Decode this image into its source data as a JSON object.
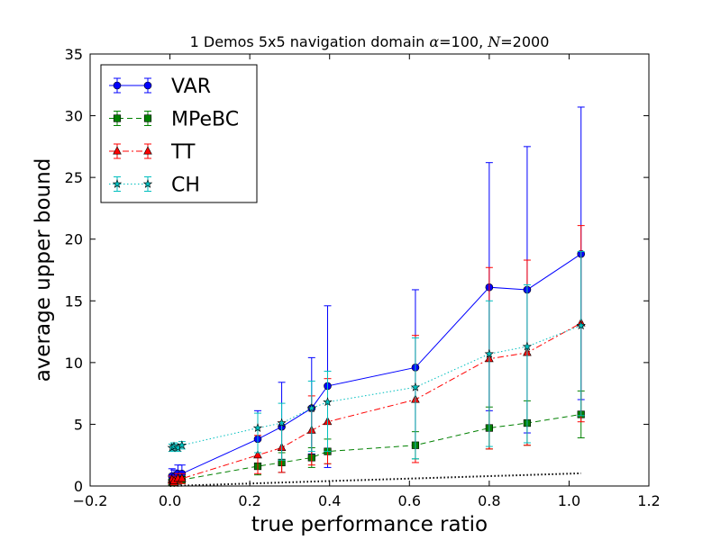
{
  "chart_data": {
    "type": "line",
    "title": "1 Demos 5x5 navigation domain α=100, N=2000",
    "title_parts": {
      "prefix": "1 Demos 5x5 navigation domain ",
      "alpha_symbol": "α",
      "alpha_value": "=100, ",
      "n_symbol": "N",
      "n_value": "=2000"
    },
    "xlabel": "true performance ratio",
    "ylabel": "average upper bound",
    "xlim": [
      -0.2,
      1.2
    ],
    "ylim": [
      0,
      35
    ],
    "xticks": [
      -0.2,
      0.0,
      0.2,
      0.4,
      0.6,
      0.8,
      1.0,
      1.2
    ],
    "xtick_labels": [
      "−0.2",
      "0.0",
      "0.2",
      "0.4",
      "0.6",
      "0.8",
      "1.0",
      "1.2"
    ],
    "yticks": [
      0,
      5,
      10,
      15,
      20,
      25,
      30,
      35
    ],
    "ytick_labels": [
      "0",
      "5",
      "10",
      "15",
      "20",
      "25",
      "30",
      "35"
    ],
    "grid": false,
    "legend_position": "top-left",
    "x": [
      0.005,
      0.01,
      0.02,
      0.03,
      0.22,
      0.28,
      0.355,
      0.395,
      0.615,
      0.8,
      0.895,
      1.03
    ],
    "series": [
      {
        "name": "VAR",
        "color": "#0000ff",
        "marker": "circle",
        "linestyle": "solid",
        "y": [
          0.8,
          0.7,
          1.0,
          1.0,
          3.8,
          4.8,
          6.3,
          8.1,
          9.6,
          16.1,
          15.9,
          18.8
        ],
        "err_low": [
          0.3,
          0.3,
          0.5,
          0.5,
          2.4,
          3.7,
          3.7,
          6.6,
          6.3,
          10.0,
          11.6,
          11.8
        ],
        "err_high": [
          0.6,
          0.6,
          0.7,
          0.7,
          2.3,
          3.6,
          4.1,
          6.5,
          6.3,
          10.1,
          11.6,
          11.9
        ]
      },
      {
        "name": "MPeBC",
        "color": "#008000",
        "marker": "square",
        "linestyle": "dashed",
        "y": [
          0.3,
          0.3,
          0.4,
          0.5,
          1.6,
          1.9,
          2.3,
          2.8,
          3.3,
          4.7,
          5.1,
          5.8
        ],
        "err_low": [
          0.2,
          0.2,
          0.2,
          0.3,
          0.7,
          0.8,
          0.8,
          1.0,
          1.1,
          1.7,
          1.8,
          1.9
        ],
        "err_high": [
          0.2,
          0.2,
          0.3,
          0.3,
          0.7,
          0.8,
          0.8,
          1.0,
          1.1,
          1.7,
          1.8,
          1.9
        ]
      },
      {
        "name": "TT",
        "color": "#ff0000",
        "marker": "triangle",
        "linestyle": "dashdot",
        "y": [
          0.5,
          0.4,
          0.6,
          0.6,
          2.5,
          3.1,
          4.5,
          5.2,
          7.0,
          10.3,
          10.8,
          13.2
        ],
        "err_low": [
          0.3,
          0.3,
          0.3,
          0.4,
          1.5,
          2.0,
          2.8,
          3.4,
          5.1,
          7.3,
          7.5,
          8.0
        ],
        "err_high": [
          0.3,
          0.3,
          0.4,
          0.4,
          1.6,
          2.1,
          2.8,
          3.5,
          5.2,
          7.4,
          7.5,
          7.9
        ]
      },
      {
        "name": "CH",
        "color": "#00bfbf",
        "marker": "star",
        "linestyle": "dotted",
        "y": [
          3.1,
          3.2,
          3.1,
          3.3,
          4.7,
          5.1,
          6.3,
          6.8,
          8.0,
          10.7,
          11.3,
          13.0
        ],
        "err_low": [
          0.3,
          0.3,
          0.3,
          0.3,
          2.0,
          3.0,
          3.5,
          4.0,
          5.8,
          7.5,
          7.8,
          7.3
        ],
        "err_high": [
          0.3,
          0.3,
          0.3,
          0.3,
          1.2,
          1.6,
          2.2,
          2.5,
          4.0,
          4.3,
          5.0,
          6.0
        ]
      }
    ],
    "reference_line": {
      "color": "#000000",
      "linestyle": "dotted",
      "x": [
        0.0,
        1.03
      ],
      "y": [
        0.0,
        1.03
      ]
    }
  }
}
